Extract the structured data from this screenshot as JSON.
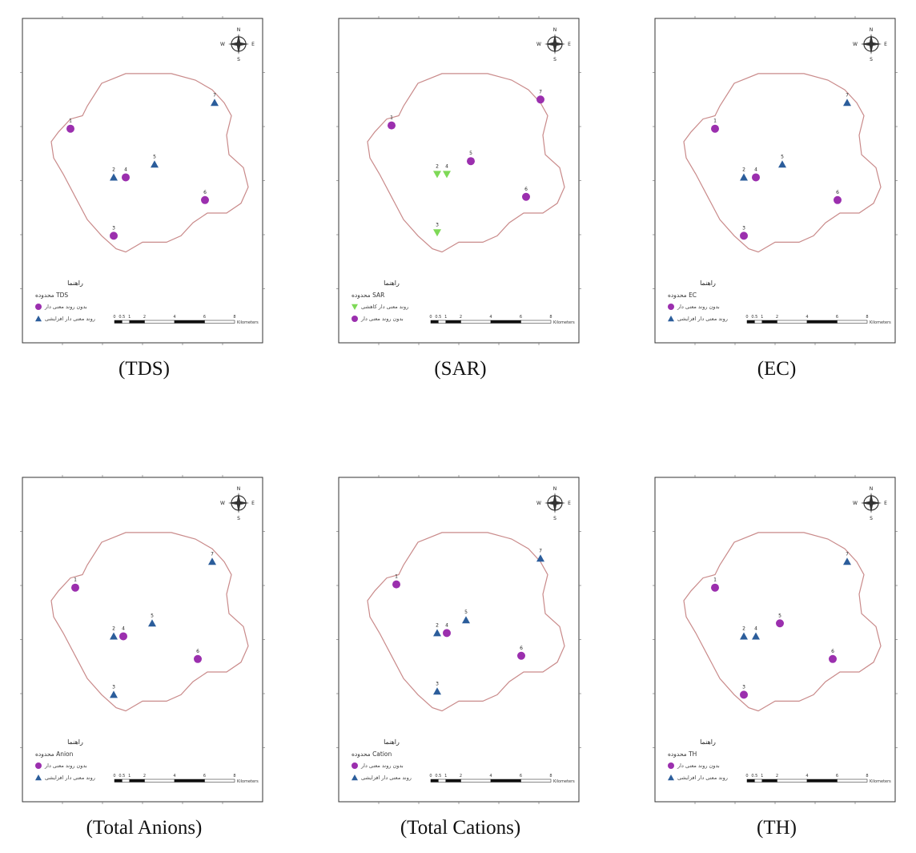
{
  "panels": [
    {
      "caption": "(TDS)",
      "legend_title": "محدوده TDS",
      "legend": [
        {
          "symbol": "circle",
          "label": "بدون روند معنی دار"
        },
        {
          "symbol": "triangle-up",
          "label": "روند معنی دار افزایشی"
        }
      ],
      "points": [
        {
          "id": "1",
          "symbol": "circle",
          "x": 0.2,
          "y": 0.34
        },
        {
          "id": "2",
          "symbol": "triangle-up",
          "x": 0.38,
          "y": 0.49
        },
        {
          "id": "3",
          "symbol": "circle",
          "x": 0.38,
          "y": 0.67
        },
        {
          "id": "4",
          "symbol": "circle",
          "x": 0.43,
          "y": 0.49
        },
        {
          "id": "5",
          "symbol": "triangle-up",
          "x": 0.55,
          "y": 0.45
        },
        {
          "id": "6",
          "symbol": "circle",
          "x": 0.76,
          "y": 0.56
        },
        {
          "id": "7",
          "symbol": "triangle-up",
          "x": 0.8,
          "y": 0.26
        }
      ]
    },
    {
      "caption": "(SAR)",
      "legend_title": "محدوده SAR",
      "legend": [
        {
          "symbol": "triangle-down",
          "label": "روند معنی دار کاهشی"
        },
        {
          "symbol": "circle",
          "label": "بدون روند معنی دار"
        }
      ],
      "points": [
        {
          "id": "1",
          "symbol": "circle",
          "x": 0.22,
          "y": 0.33
        },
        {
          "id": "2",
          "symbol": "triangle-down",
          "x": 0.41,
          "y": 0.48
        },
        {
          "id": "3",
          "symbol": "triangle-down",
          "x": 0.41,
          "y": 0.66
        },
        {
          "id": "4",
          "symbol": "triangle-down",
          "x": 0.45,
          "y": 0.48
        },
        {
          "id": "5",
          "symbol": "circle",
          "x": 0.55,
          "y": 0.44
        },
        {
          "id": "6",
          "symbol": "circle",
          "x": 0.78,
          "y": 0.55
        },
        {
          "id": "7",
          "symbol": "circle",
          "x": 0.84,
          "y": 0.25
        }
      ]
    },
    {
      "caption": "(EC)",
      "legend_title": "محدوده EC",
      "legend": [
        {
          "symbol": "circle",
          "label": "بدون روند معنی دار"
        },
        {
          "symbol": "triangle-up",
          "label": "روند معنی دار افزایشی"
        }
      ],
      "points": [
        {
          "id": "1",
          "symbol": "circle",
          "x": 0.25,
          "y": 0.34
        },
        {
          "id": "2",
          "symbol": "triangle-up",
          "x": 0.37,
          "y": 0.49
        },
        {
          "id": "3",
          "symbol": "circle",
          "x": 0.37,
          "y": 0.67
        },
        {
          "id": "4",
          "symbol": "circle",
          "x": 0.42,
          "y": 0.49
        },
        {
          "id": "5",
          "symbol": "triangle-up",
          "x": 0.53,
          "y": 0.45
        },
        {
          "id": "6",
          "symbol": "circle",
          "x": 0.76,
          "y": 0.56
        },
        {
          "id": "7",
          "symbol": "triangle-up",
          "x": 0.8,
          "y": 0.26
        }
      ]
    },
    {
      "caption": "(Total Anions)",
      "legend_title": "محدوده Anion",
      "legend": [
        {
          "symbol": "circle",
          "label": "بدون روند معنی دار"
        },
        {
          "symbol": "triangle-up",
          "label": "روند معنی دار افزایشی"
        }
      ],
      "points": [
        {
          "id": "1",
          "symbol": "circle",
          "x": 0.22,
          "y": 0.34
        },
        {
          "id": "2",
          "symbol": "triangle-up",
          "x": 0.38,
          "y": 0.49
        },
        {
          "id": "3",
          "symbol": "triangle-up",
          "x": 0.38,
          "y": 0.67
        },
        {
          "id": "4",
          "symbol": "circle",
          "x": 0.42,
          "y": 0.49
        },
        {
          "id": "5",
          "symbol": "triangle-up",
          "x": 0.54,
          "y": 0.45
        },
        {
          "id": "6",
          "symbol": "circle",
          "x": 0.73,
          "y": 0.56
        },
        {
          "id": "7",
          "symbol": "triangle-up",
          "x": 0.79,
          "y": 0.26
        }
      ]
    },
    {
      "caption": "(Total Cations)",
      "legend_title": "محدوده Cation",
      "legend": [
        {
          "symbol": "circle",
          "label": "بدون روند معنی دار"
        },
        {
          "symbol": "triangle-up",
          "label": "روند معنی دار افزایشی"
        }
      ],
      "points": [
        {
          "id": "1",
          "symbol": "circle",
          "x": 0.24,
          "y": 0.33
        },
        {
          "id": "2",
          "symbol": "triangle-up",
          "x": 0.41,
          "y": 0.48
        },
        {
          "id": "3",
          "symbol": "triangle-up",
          "x": 0.41,
          "y": 0.66
        },
        {
          "id": "4",
          "symbol": "circle",
          "x": 0.45,
          "y": 0.48
        },
        {
          "id": "5",
          "symbol": "triangle-up",
          "x": 0.53,
          "y": 0.44
        },
        {
          "id": "6",
          "symbol": "circle",
          "x": 0.76,
          "y": 0.55
        },
        {
          "id": "7",
          "symbol": "triangle-up",
          "x": 0.84,
          "y": 0.25
        }
      ]
    },
    {
      "caption": "(TH)",
      "legend_title": "محدوده TH",
      "legend": [
        {
          "symbol": "circle",
          "label": "بدون روند معنی دار"
        },
        {
          "symbol": "triangle-up",
          "label": "روند معنی دار افزایشی"
        }
      ],
      "points": [
        {
          "id": "1",
          "symbol": "circle",
          "x": 0.25,
          "y": 0.34
        },
        {
          "id": "2",
          "symbol": "triangle-up",
          "x": 0.37,
          "y": 0.49
        },
        {
          "id": "3",
          "symbol": "circle",
          "x": 0.37,
          "y": 0.67
        },
        {
          "id": "4",
          "symbol": "triangle-up",
          "x": 0.42,
          "y": 0.49
        },
        {
          "id": "5",
          "symbol": "circle",
          "x": 0.52,
          "y": 0.45
        },
        {
          "id": "6",
          "symbol": "circle",
          "x": 0.74,
          "y": 0.56
        },
        {
          "id": "7",
          "symbol": "triangle-up",
          "x": 0.8,
          "y": 0.26
        }
      ]
    }
  ],
  "legend_heading": "راهنما",
  "scale_numbers": [
    "0",
    "0.5",
    "1",
    "2",
    "4",
    "6",
    "8"
  ],
  "scale_unit": "Kilometers",
  "compass_letters": {
    "n": "N",
    "s": "S",
    "e": "E",
    "w": "W"
  },
  "colors": {
    "circle": "#9b2fae",
    "triangle-up": "#2b5d9b",
    "triangle-down": "#7ed957",
    "boundary": "#c98a8a"
  }
}
